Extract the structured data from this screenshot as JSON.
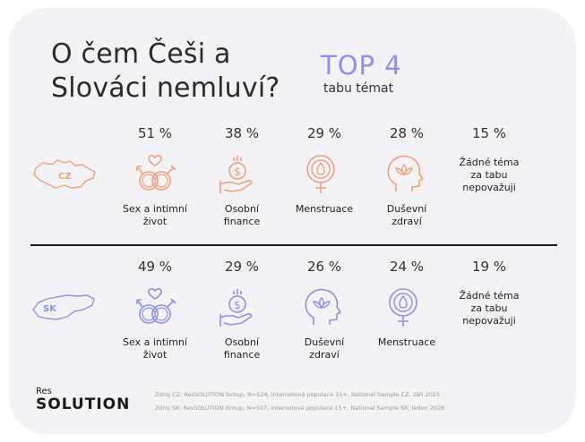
{
  "title_line1": "O čem Češi a",
  "title_line2": "Slováci nemluví?",
  "top4": "TOP 4",
  "top4_sub": "tabu témat",
  "colors": {
    "cz": "#f4a07d",
    "sk": "#8f8ff3",
    "accent_title": "#8f8ff3"
  },
  "cz": {
    "country": "CZ",
    "items": [
      {
        "pct": "51 %",
        "label_lines": [
          "Sex a intimní",
          "život"
        ],
        "icon": "gender-rings-heart-icon"
      },
      {
        "pct": "38 %",
        "label_lines": [
          "Osobní",
          "finance"
        ],
        "icon": "money-hand-icon"
      },
      {
        "pct": "29 %",
        "label_lines": [
          "Menstruace"
        ],
        "icon": "female-drop-icon"
      },
      {
        "pct": "28 %",
        "label_lines": [
          "Duševní",
          "zdraví"
        ],
        "icon": "head-lotus-icon"
      }
    ],
    "none": {
      "pct": "15 %",
      "label_lines": [
        "Žádné téma",
        "za tabu",
        "nepovažuji"
      ]
    }
  },
  "sk": {
    "country": "SK",
    "items": [
      {
        "pct": "49 %",
        "label_lines": [
          "Sex a intimní",
          "život"
        ],
        "icon": "gender-rings-heart-icon"
      },
      {
        "pct": "29 %",
        "label_lines": [
          "Osobní",
          "finance"
        ],
        "icon": "money-hand-icon"
      },
      {
        "pct": "26 %",
        "label_lines": [
          "Duševní",
          "zdraví"
        ],
        "icon": "head-lotus-icon"
      },
      {
        "pct": "24 %",
        "label_lines": [
          "Menstruace"
        ],
        "icon": "female-drop-icon"
      }
    ],
    "none": {
      "pct": "19 %",
      "label_lines": [
        "Žádné téma",
        "za tabu",
        "nepovažuji"
      ]
    }
  },
  "logo": {
    "res": "Res",
    "solution": "SOLUTION"
  },
  "source_cz": "Zdroj CZ: ResSOLUTION Group, N=524, internetová populace 15+, National Sample CZ, září 2025",
  "source_sk": "Zdroj SK: ResSOLUTION Group, N=507, internetová populace 15+, National Sample SK, leden 2026",
  "chart_data": {
    "type": "bar",
    "categories_cz": [
      "Sex a intimní život",
      "Osobní finance",
      "Menstruace",
      "Duševní zdraví",
      "Žádné téma za tabu nepovažuji"
    ],
    "categories_sk": [
      "Sex a intimní život",
      "Osobní finance",
      "Duševní zdraví",
      "Menstruace",
      "Žádné téma za tabu nepovažuji"
    ],
    "series": [
      {
        "name": "CZ",
        "values": [
          51,
          38,
          29,
          28,
          15
        ]
      },
      {
        "name": "SK",
        "values": [
          49,
          29,
          26,
          24,
          19
        ]
      }
    ],
    "title": "O čem Češi a Slováci nemluví?",
    "subtitle": "TOP 4 tabu témat",
    "unit": "%"
  }
}
